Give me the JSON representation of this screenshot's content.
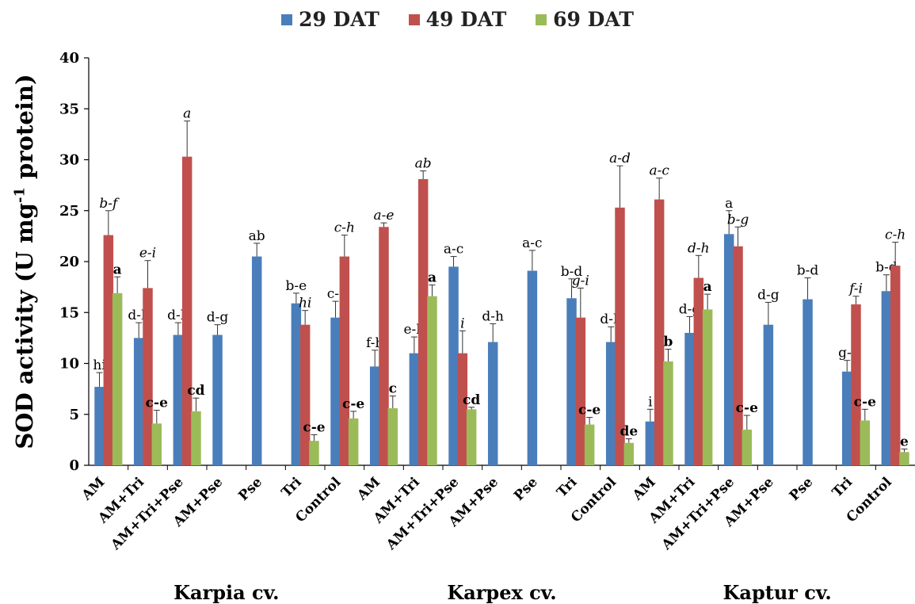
{
  "chart_data": {
    "type": "bar",
    "ylabel": "SOD activity (U mg",
    "ylabel_sup": "-1",
    "ylabel_suffix": " protein)",
    "xlabel": "",
    "ylim": [
      0,
      40
    ],
    "yticks": [
      0,
      5,
      10,
      15,
      20,
      25,
      30,
      35,
      40
    ],
    "legend_position": "top",
    "grid": false,
    "categories": [
      "AM",
      "AM+Tri",
      "AM+Tri+Pse",
      "AM+Pse",
      "Pse",
      "Tri",
      "Control",
      "AM",
      "AM+Tri",
      "AM+Tri+Pse",
      "AM+Pse",
      "Pse",
      "Tri",
      "Control",
      "AM",
      "AM+Tri",
      "AM+Tri+Pse",
      "AM+Pse",
      "Pse",
      "Tri",
      "Control"
    ],
    "groups": [
      {
        "label": "Karpia cv.",
        "start": 0,
        "end": 6
      },
      {
        "label": "Karpex cv.",
        "start": 7,
        "end": 13
      },
      {
        "label": "Kaptur cv.",
        "start": 14,
        "end": 20
      }
    ],
    "series": [
      {
        "name": "29 DAT",
        "color": "#4a7ebb",
        "label_style": "normal",
        "values": [
          7.7,
          12.5,
          12.8,
          12.8,
          20.5,
          15.9,
          14.5,
          9.7,
          11.0,
          19.5,
          12.1,
          19.1,
          16.4,
          12.1,
          4.3,
          13.0,
          22.7,
          13.8,
          16.3,
          9.2,
          17.1
        ],
        "errors": [
          1.4,
          1.5,
          1.2,
          1.0,
          1.3,
          1.0,
          1.6,
          1.6,
          1.6,
          1.0,
          1.8,
          2.0,
          1.9,
          1.5,
          1.2,
          1.6,
          2.3,
          2.2,
          2.1,
          1.1,
          1.6
        ],
        "letters": [
          "hi",
          "d-h",
          "d-h",
          "d-g",
          "ab",
          "b-e",
          "c-f",
          "f-h",
          "e-h",
          "a-c",
          "d-h",
          "a-c",
          "b-d",
          "d-h",
          "i",
          "d-g",
          "a",
          "d-g",
          "b-d",
          "g-i",
          "b-d"
        ]
      },
      {
        "name": "49 DAT",
        "color": "#c0504d",
        "label_style": "italic",
        "values": [
          22.6,
          17.4,
          30.3,
          null,
          null,
          13.8,
          20.5,
          23.4,
          28.1,
          11.0,
          null,
          null,
          14.5,
          25.3,
          26.1,
          18.4,
          21.5,
          null,
          null,
          15.8,
          19.6
        ],
        "errors": [
          2.4,
          2.7,
          3.5,
          null,
          null,
          1.4,
          2.1,
          0.4,
          0.8,
          2.2,
          null,
          null,
          2.9,
          4.1,
          2.1,
          2.2,
          1.9,
          null,
          null,
          0.8,
          2.3
        ],
        "letters": [
          "b-f",
          "e-i",
          "a",
          null,
          null,
          "hi",
          "c-h",
          "a-e",
          "ab",
          "i",
          null,
          null,
          "g-i",
          "a-d",
          "a-c",
          "d-h",
          "b-g",
          null,
          null,
          "f-i",
          "c-h"
        ]
      },
      {
        "name": "69 DAT",
        "color": "#9bbb59",
        "label_style": "bold",
        "values": [
          16.9,
          4.1,
          5.3,
          null,
          null,
          2.4,
          4.6,
          5.6,
          16.6,
          5.5,
          null,
          null,
          4.0,
          2.2,
          10.2,
          15.3,
          3.5,
          null,
          null,
          4.4,
          1.3
        ],
        "errors": [
          1.6,
          1.3,
          1.3,
          null,
          null,
          0.6,
          0.7,
          1.2,
          1.1,
          0.2,
          null,
          null,
          0.7,
          0.4,
          1.2,
          1.5,
          1.4,
          null,
          null,
          1.1,
          0.3
        ],
        "letters": [
          "a",
          "c-e",
          "cd",
          null,
          null,
          "c-e",
          "c-e",
          "c",
          "a",
          "cd",
          null,
          null,
          "c-e",
          "de",
          "b",
          "a",
          "c-e",
          null,
          null,
          "c-e",
          "e"
        ]
      }
    ]
  }
}
